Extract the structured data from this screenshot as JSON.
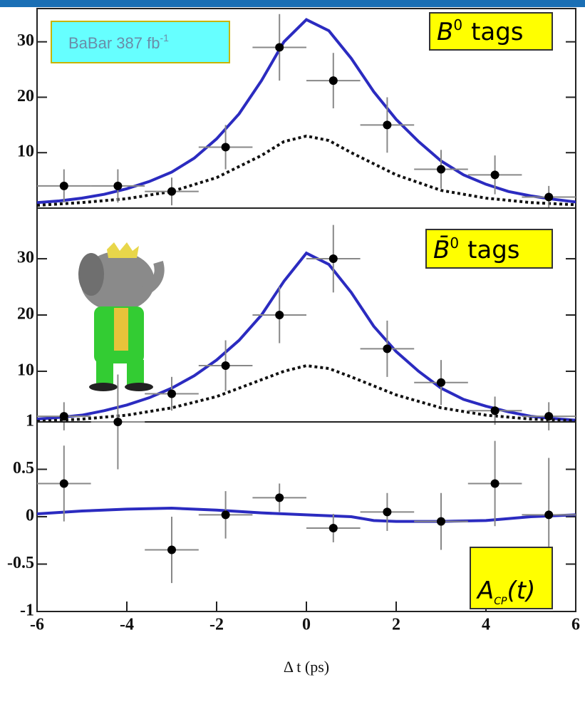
{
  "chart_data": [
    {
      "type": "scatter",
      "xlim": [
        -6,
        6
      ],
      "ylim": [
        0,
        36
      ],
      "yticks": [
        10,
        20,
        30
      ],
      "badge": {
        "text": "BaBar 387 fb",
        "sup": "-1"
      },
      "label": {
        "main": "B",
        "sup": "0",
        "rest": "tags"
      },
      "points": {
        "color": "#000000",
        "x": [
          -5.4,
          -4.2,
          -3.0,
          -1.8,
          -0.6,
          0.6,
          1.8,
          3.0,
          4.2,
          5.4
        ],
        "xerr": [
          0.6,
          0.6,
          0.6,
          0.6,
          0.6,
          0.6,
          0.6,
          0.6,
          0.6,
          0.6
        ],
        "values": [
          4,
          4,
          3,
          11,
          29,
          23,
          15,
          7,
          6,
          2
        ],
        "yerr": [
          3,
          3,
          2.5,
          4,
          6,
          5,
          5,
          3.5,
          3.5,
          2
        ]
      },
      "curves": [
        {
          "color": "#2b2bc0",
          "style": "solid",
          "x": [
            -6,
            -5.5,
            -5,
            -4.5,
            -4,
            -3.5,
            -3,
            -2.5,
            -2,
            -1.5,
            -1,
            -0.5,
            0,
            0.5,
            1,
            1.5,
            2,
            2.5,
            3,
            3.5,
            4,
            4.5,
            5,
            5.5,
            6
          ],
          "values": [
            1,
            1.3,
            1.8,
            2.5,
            3.5,
            4.8,
            6.5,
            9,
            12.5,
            17,
            23,
            30,
            34,
            32,
            27,
            21,
            16,
            12,
            8.5,
            6,
            4.3,
            3,
            2.2,
            1.6,
            1.1
          ]
        },
        {
          "color": "#111111",
          "style": "dotted",
          "x": [
            -6,
            -5,
            -4,
            -3,
            -2,
            -1,
            -0.5,
            0,
            0.5,
            1,
            2,
            3,
            4,
            5,
            6
          ],
          "values": [
            0.5,
            1,
            1.7,
            3,
            5.5,
            9.5,
            12,
            13,
            12.2,
            10,
            6,
            3.2,
            1.8,
            1,
            0.6
          ]
        }
      ]
    },
    {
      "type": "scatter",
      "xlim": [
        -6,
        6
      ],
      "ylim": [
        1,
        39
      ],
      "yticks": [
        10,
        20,
        30
      ],
      "label": {
        "main": "B̄",
        "sup": "0",
        "rest": "tags"
      },
      "points": {
        "color": "#000000",
        "x": [
          -5.4,
          -3.0,
          -1.8,
          -0.6,
          0.6,
          1.8,
          3.0,
          4.2,
          5.4
        ],
        "xerr": [
          0.6,
          0.6,
          0.6,
          0.6,
          0.6,
          0.6,
          0.6,
          0.6,
          0.6
        ],
        "values": [
          2,
          6,
          11,
          20,
          30,
          14,
          8,
          3,
          2
        ],
        "yerr": [
          2.5,
          3,
          4.5,
          5,
          6,
          5,
          4,
          2.5,
          2.5
        ]
      },
      "curves": [
        {
          "color": "#2b2bc0",
          "style": "solid",
          "x": [
            -6,
            -5.5,
            -5,
            -4.5,
            -4,
            -3.5,
            -3,
            -2.5,
            -2,
            -1.5,
            -1,
            -0.5,
            0,
            0.5,
            1,
            1.5,
            2,
            2.5,
            3,
            3.5,
            4,
            4.5,
            5,
            5.5,
            6
          ],
          "values": [
            1.5,
            1.8,
            2.2,
            3,
            4,
            5.3,
            7,
            9.2,
            12,
            15.5,
            20,
            26,
            31,
            29,
            24,
            18,
            13.5,
            10,
            7,
            5,
            3.8,
            2.8,
            2,
            1.6,
            1.3
          ]
        },
        {
          "color": "#111111",
          "style": "dotted",
          "x": [
            -6,
            -5,
            -4,
            -3,
            -2,
            -1,
            -0.5,
            0,
            0.5,
            1,
            2,
            3,
            4,
            5,
            6
          ],
          "values": [
            1.1,
            1.5,
            2.2,
            3.5,
            5.5,
            8.5,
            10,
            11,
            10.5,
            9,
            5.8,
            3.5,
            2.2,
            1.5,
            1.2
          ]
        }
      ]
    },
    {
      "type": "scatter",
      "xlim": [
        -6,
        6
      ],
      "ylim": [
        -1,
        1
      ],
      "yticks": [
        -1,
        -0.5,
        0,
        0.5,
        1
      ],
      "xticks": [
        -6,
        -4,
        -2,
        0,
        2,
        4,
        6
      ],
      "xlabel": "Δ t (ps)",
      "label": {
        "main": "A",
        "sub": "CP",
        "rest": "(t)"
      },
      "points": {
        "color": "#000000",
        "x": [
          -5.4,
          -4.2,
          -3.0,
          -1.8,
          -0.6,
          0.6,
          1.8,
          3.0,
          4.2,
          5.4
        ],
        "xerr": [
          0.6,
          0.6,
          0.6,
          0.6,
          0.6,
          0.6,
          0.6,
          0.6,
          0.6,
          0.6
        ],
        "values": [
          0.35,
          1.0,
          -0.35,
          0.02,
          0.2,
          -0.12,
          0.05,
          -0.05,
          0.35,
          0.02
        ],
        "yerr": [
          0.4,
          0.5,
          0.35,
          0.25,
          0.15,
          0.15,
          0.2,
          0.3,
          0.45,
          0.6
        ]
      },
      "curves": [
        {
          "color": "#2b2bc0",
          "style": "solid",
          "x": [
            -6,
            -5,
            -4,
            -3,
            -2,
            -1,
            0,
            1,
            1.5,
            2,
            3,
            4,
            5,
            6
          ],
          "values": [
            0.03,
            0.06,
            0.08,
            0.09,
            0.07,
            0.04,
            0.02,
            0,
            -0.04,
            -0.05,
            -0.05,
            -0.04,
            0,
            0.02
          ]
        }
      ]
    }
  ]
}
